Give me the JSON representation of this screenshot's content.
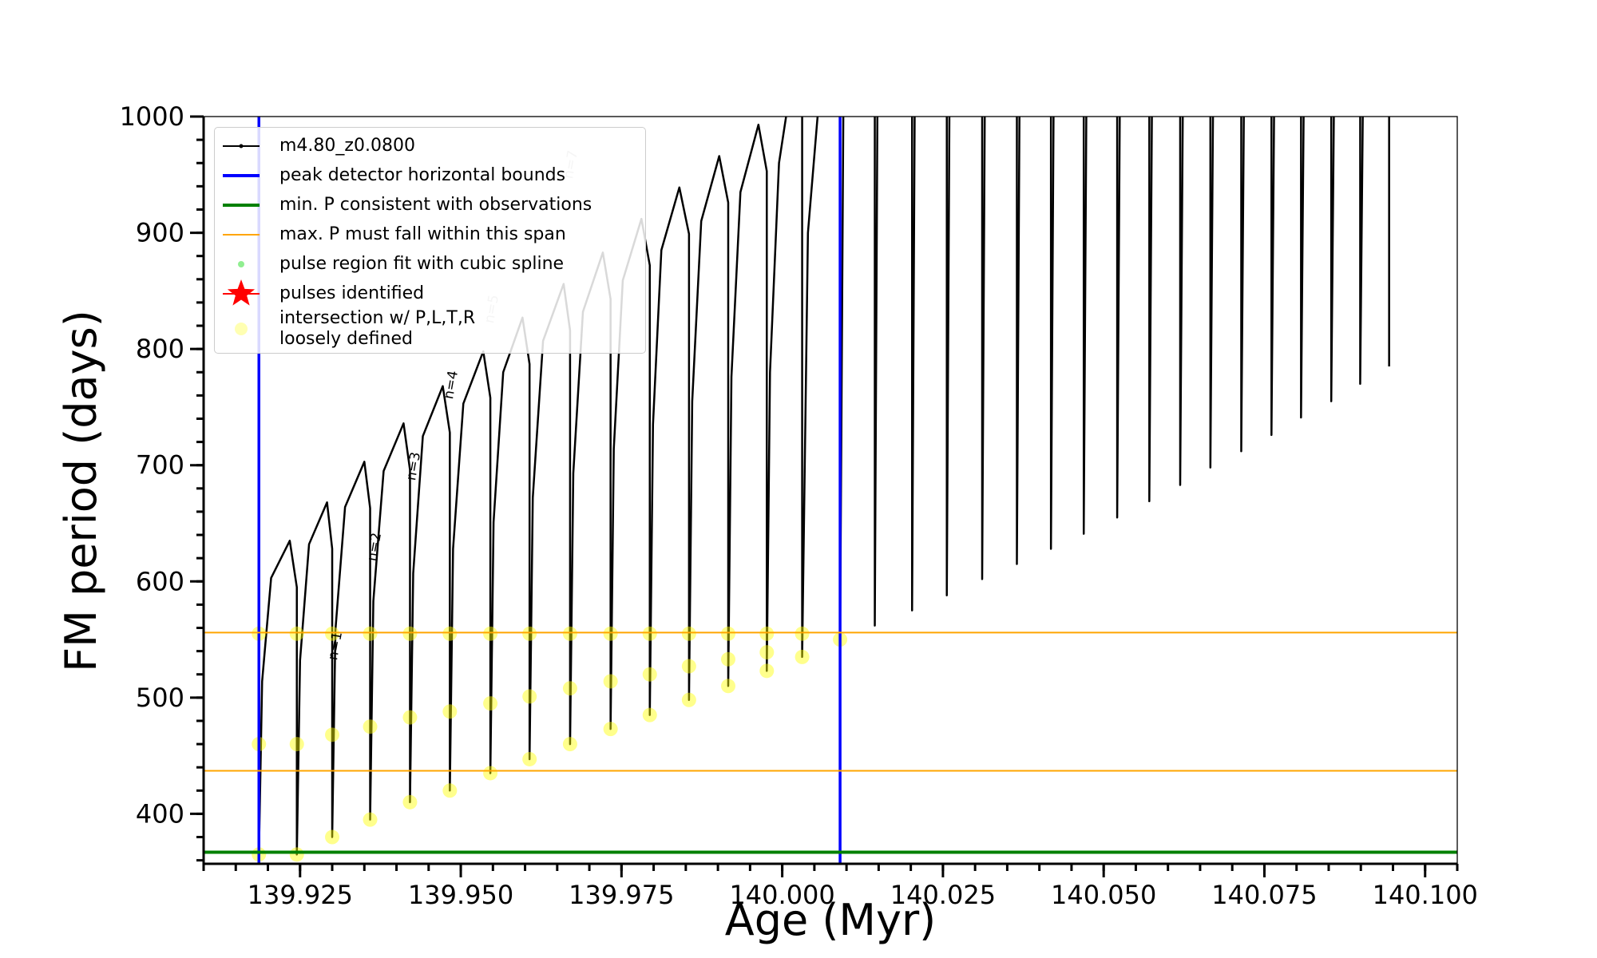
{
  "chart_data": {
    "type": "line",
    "xlabel": "Age (Myr)",
    "ylabel": "FM period (days)",
    "xlim": [
      139.91,
      140.105
    ],
    "ylim": [
      357,
      1000
    ],
    "xticks": [
      139.925,
      {
        "value": 139.95,
        "label": "139.950"
      },
      139.975,
      {
        "value": 140,
        "label": "140.000"
      },
      140.025,
      {
        "value": 140.05,
        "label": "140.050"
      },
      140.075,
      {
        "value": 140.1,
        "label": "140.100"
      }
    ],
    "xminorticks": [
      139.91,
      139.915,
      139.92,
      139.925,
      139.93,
      139.935,
      139.94,
      139.945,
      139.95,
      139.955,
      139.96,
      139.965,
      139.97,
      139.975,
      139.98,
      139.985,
      139.99,
      139.995,
      140,
      140.005,
      140.01,
      140.015,
      140.02,
      140.025,
      140.03,
      140.035,
      140.04,
      140.045,
      140.05,
      140.055,
      140.06,
      140.065,
      140.07,
      140.075,
      140.08,
      140.085,
      140.09,
      140.095,
      140.1,
      140.105
    ],
    "yticks": [
      400,
      500,
      600,
      700,
      800,
      900,
      1000
    ],
    "yminorticks": [
      360,
      380,
      400,
      420,
      440,
      460,
      480,
      500,
      520,
      540,
      560,
      580,
      600,
      620,
      640,
      660,
      680,
      700,
      720,
      740,
      760,
      780,
      800,
      820,
      840,
      860,
      880,
      900,
      920,
      940,
      960,
      980,
      1000
    ],
    "series": [
      {
        "name": "m4.80_z0.0800",
        "color": "#000000",
        "kind": "line",
        "x": [
          139.9186,
          139.9191,
          139.9205,
          139.9234,
          139.9245,
          139.9245,
          139.925,
          139.9264,
          139.9292,
          139.93,
          139.93,
          139.9305,
          139.932,
          139.935,
          139.9359,
          139.9359,
          139.9364,
          139.938,
          139.9411,
          139.9421,
          139.9421,
          139.9426,
          139.9441,
          139.9472,
          139.9483,
          139.9483,
          139.9488,
          139.9504,
          139.9535,
          139.9546,
          139.9546,
          139.9551,
          139.9566,
          139.9596,
          139.9607,
          139.9607,
          139.9612,
          139.9628,
          139.966,
          139.967,
          139.967,
          139.9675,
          139.969,
          139.9721,
          139.9733,
          139.9733,
          139.9738,
          139.9752,
          139.9781,
          139.9794,
          139.9794,
          139.9799,
          139.9812,
          139.984,
          139.9855,
          139.9855,
          139.986,
          139.9874,
          139.9902,
          139.9916,
          139.9916,
          139.9921,
          139.9935,
          139.9963,
          139.9976,
          139.9976,
          139.9981,
          139.9995,
          140.0006,
          140.0031,
          140.0031,
          140.0031,
          140.004,
          140.0055,
          140.009,
          140.009,
          140.009,
          140.0095,
          140.0144,
          140.0144,
          140.0144,
          140.0148,
          140.0202,
          140.0202,
          140.0202,
          140.0206,
          140.0256,
          140.0256,
          140.0256,
          140.026,
          140.0311,
          140.0311,
          140.0311,
          140.0315,
          140.0365,
          140.0365,
          140.0365,
          140.0369,
          140.0418,
          140.0418,
          140.0418,
          140.0422,
          140.0469,
          140.0469,
          140.0469,
          140.0473,
          140.0521,
          140.0521,
          140.0521,
          140.0525,
          140.0571,
          140.0571,
          140.0571,
          140.0575,
          140.0619,
          140.0619,
          140.0619,
          140.0623,
          140.0666,
          140.0666,
          140.0666,
          140.067,
          140.0714,
          140.0714,
          140.0714,
          140.0718,
          140.0761,
          140.0761,
          140.0761,
          140.0765,
          140.0807,
          140.0807,
          140.0807,
          140.0811,
          140.0854,
          140.0854,
          140.0854,
          140.0858,
          140.0899,
          140.0899,
          140.0899,
          140.0903,
          140.0944,
          140.0944,
          140.0944
        ],
        "values": [
          365,
          514,
          603,
          635,
          595,
          365,
          532,
          632,
          668,
          628,
          380,
          558,
          664,
          703,
          663,
          395,
          583,
          695,
          736,
          696,
          410,
          607,
          725,
          768,
          728,
          420,
          628,
          753,
          798,
          758,
          435,
          651,
          780,
          827,
          787,
          447,
          672,
          807,
          856,
          816,
          460,
          693,
          832,
          883,
          843,
          473,
          714,
          859,
          912,
          872,
          485,
          735,
          885,
          939,
          899,
          498,
          755,
          910,
          966,
          926,
          510,
          776,
          935,
          993,
          953,
          523,
          780,
          960,
          1000,
          null,
          1000,
          535,
          900,
          1000,
          null,
          1000,
          550,
          1000,
          null,
          1000,
          562,
          1000,
          null,
          1000,
          575,
          1000,
          null,
          1000,
          588,
          1000,
          null,
          1000,
          602,
          1000,
          null,
          1000,
          615,
          1000,
          null,
          1000,
          628,
          1000,
          null,
          1000,
          641,
          1000,
          null,
          1000,
          655,
          1000,
          null,
          1000,
          669,
          1000,
          null,
          1000,
          683,
          1000,
          null,
          1000,
          698,
          1000,
          null,
          1000,
          712,
          1000,
          null,
          1000,
          726,
          1000,
          null,
          1000,
          741,
          1000,
          null,
          1000,
          755,
          1000,
          null,
          1000,
          770,
          1000,
          null,
          1000,
          785
        ]
      },
      {
        "name": "peak detector horizontal bounds",
        "color": "#0000ff",
        "kind": "vline",
        "x": [
          139.9186,
          140.009
        ]
      },
      {
        "name": "min. P consistent with observations",
        "color": "#008000",
        "kind": "hline",
        "values": [
          367
        ]
      },
      {
        "name": "max. P must fall within this span",
        "color": "#ffa500",
        "kind": "hline",
        "values": [
          437,
          556
        ]
      },
      {
        "name": "pulse region fit with cubic spline",
        "color": "#90ee90",
        "kind": "scatter"
      },
      {
        "name": "pulses identified",
        "color": "#ff0000",
        "kind": "star"
      },
      {
        "name": "intersection w/ P,L,T,R\nloosely defined",
        "color": "#ffff00",
        "kind": "scatter",
        "x": [
          139.9186,
          139.9186,
          139.9186,
          139.9245,
          139.9245,
          139.9245,
          139.93,
          139.93,
          139.93,
          139.9359,
          139.9359,
          139.9359,
          139.9421,
          139.9421,
          139.9421,
          139.9483,
          139.9483,
          139.9483,
          139.9546,
          139.9546,
          139.9546,
          139.9607,
          139.9607,
          139.9607,
          139.967,
          139.967,
          139.967,
          139.9733,
          139.9733,
          139.9733,
          139.9794,
          139.9794,
          139.9794,
          139.9855,
          139.9855,
          139.9855,
          139.9916,
          139.9916,
          139.9916,
          139.9976,
          139.9976,
          139.9976,
          140.0031,
          140.0031,
          140.009
        ],
        "values": [
          365,
          460,
          555,
          365,
          460,
          555,
          380,
          468,
          555,
          395,
          475,
          555,
          410,
          483,
          555,
          420,
          488,
          555,
          435,
          495,
          555,
          447,
          501,
          555,
          460,
          508,
          555,
          473,
          514,
          555,
          485,
          520,
          555,
          498,
          527,
          555,
          510,
          533,
          555,
          523,
          539,
          555,
          535,
          555,
          550
        ]
      }
    ],
    "annotations": [
      {
        "text": "n=1",
        "color": "#000000"
      },
      {
        "text": "n=2",
        "color": "#000000"
      },
      {
        "text": "n=3",
        "color": "#000000"
      },
      {
        "text": "n=4",
        "color": "#000000"
      },
      {
        "text": "n=5",
        "color": "#bbbbbb"
      },
      {
        "text": "n=7",
        "color": "#bbbbbb"
      }
    ]
  }
}
